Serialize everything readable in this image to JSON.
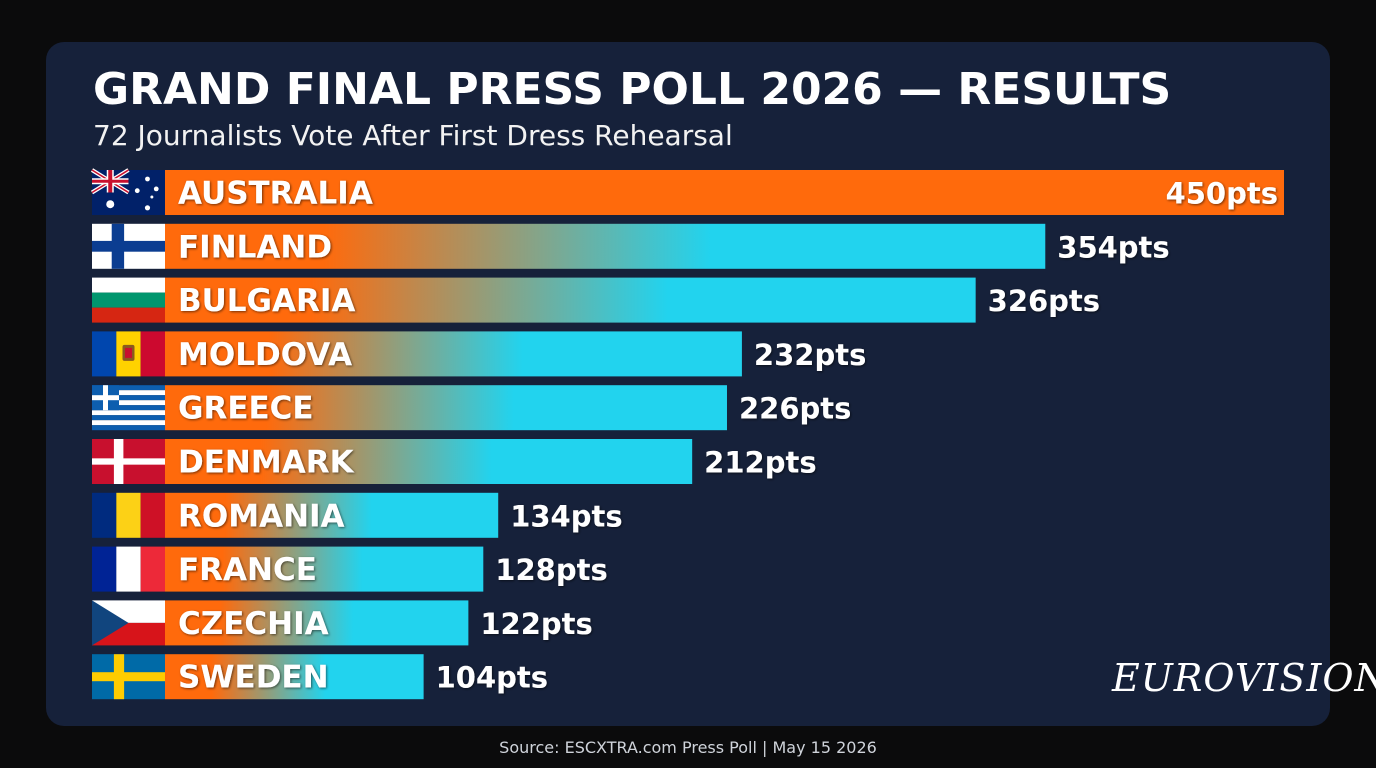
{
  "header": {
    "title": "GRAND FINAL PRESS POLL 2026 — RESULTS",
    "subtitle": "72 Journalists Vote After First Dress Rehearsal"
  },
  "footer": {
    "source": "Source: ESCXTRA.com Press Poll | May 15 2026",
    "logo_text": "EUROVISION"
  },
  "colors": {
    "background": "#0b0b0c",
    "panel": "#16213a",
    "bar_orange": "#ff6a0c",
    "bar_cyan": "#22d3ee",
    "leader": "#ff6a0c",
    "text": "#ffffff"
  },
  "chart_data": {
    "type": "bar",
    "orientation": "horizontal",
    "categories": [
      "AUSTRALIA",
      "FINLAND",
      "BULGARIA",
      "MOLDOVA",
      "GREECE",
      "DENMARK",
      "ROMANIA",
      "FRANCE",
      "CZECHIA",
      "SWEDEN"
    ],
    "values": [
      450,
      354,
      326,
      232,
      226,
      212,
      134,
      128,
      122,
      104
    ],
    "value_labels": [
      "450pts",
      "354pts",
      "326pts",
      "232pts",
      "226pts",
      "212pts",
      "134pts",
      "128pts",
      "122pts",
      "104pts"
    ],
    "flags": [
      "australia-flag",
      "finland-flag",
      "bulgaria-flag",
      "moldova-flag",
      "greece-flag",
      "denmark-flag",
      "romania-flag",
      "france-flag",
      "czechia-flag",
      "sweden-flag"
    ],
    "xlim": [
      0,
      450
    ],
    "grid": false,
    "legend": "none"
  }
}
